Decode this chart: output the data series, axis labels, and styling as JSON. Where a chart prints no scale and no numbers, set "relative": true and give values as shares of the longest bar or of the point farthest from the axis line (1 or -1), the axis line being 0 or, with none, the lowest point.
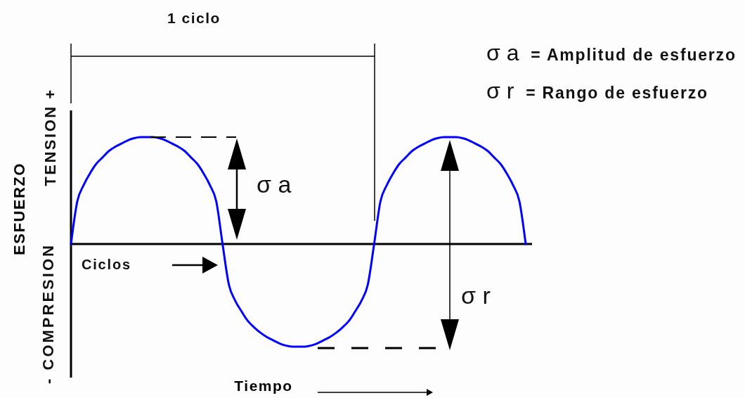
{
  "chart_data": {
    "type": "line",
    "relative": true,
    "xlabel": "Tiempo",
    "ylabel": "ESFUERZO",
    "categories": [
      null,
      null,
      null,
      null,
      null,
      null,
      null,
      null,
      null,
      null,
      null,
      null,
      null,
      null,
      null,
      null,
      null,
      null,
      null,
      null,
      null,
      null,
      null,
      null,
      null,
      null,
      null,
      null,
      null,
      null,
      null,
      null,
      null,
      null,
      null,
      null,
      null,
      null,
      null,
      null,
      null,
      null,
      null,
      null,
      null,
      null,
      null,
      null,
      null,
      null,
      null,
      null,
      null,
      null,
      null,
      null,
      null,
      null,
      null,
      null,
      null,
      null,
      null,
      null,
      null,
      null,
      null,
      null,
      null,
      null,
      null,
      null,
      null
    ],
    "series": [
      {
        "color": "#0000ff",
        "values": [
          0,
          0.4,
          0.55,
          0.66,
          0.75,
          0.81,
          0.87,
          0.91,
          0.94,
          0.97,
          0.99,
          1,
          1,
          1,
          0.99,
          0.97,
          0.94,
          0.91,
          0.87,
          0.81,
          0.75,
          0.66,
          0.55,
          0.4,
          0,
          -0.38,
          -0.53,
          -0.63,
          -0.72,
          -0.78,
          -0.83,
          -0.87,
          -0.9,
          -0.93,
          -0.95,
          -0.96,
          -0.96,
          -0.96,
          -0.95,
          -0.93,
          -0.9,
          -0.87,
          -0.83,
          -0.78,
          -0.72,
          -0.63,
          -0.53,
          -0.38,
          0,
          0.4,
          0.55,
          0.66,
          0.75,
          0.81,
          0.87,
          0.91,
          0.94,
          0.97,
          0.99,
          1,
          1,
          1,
          0.99,
          0.97,
          0.94,
          0.91,
          0.87,
          0.81,
          0.75,
          0.66,
          0.55,
          0.4,
          0
        ]
      }
    ],
    "annotations": [
      "1 ciclo",
      "TENSION +",
      "- COMPRESION",
      "σ a",
      "σ r",
      "Ciclos",
      "σ a = Amplitud de esfuerzo",
      "σ r = Rango de esfuerzo"
    ]
  }
}
